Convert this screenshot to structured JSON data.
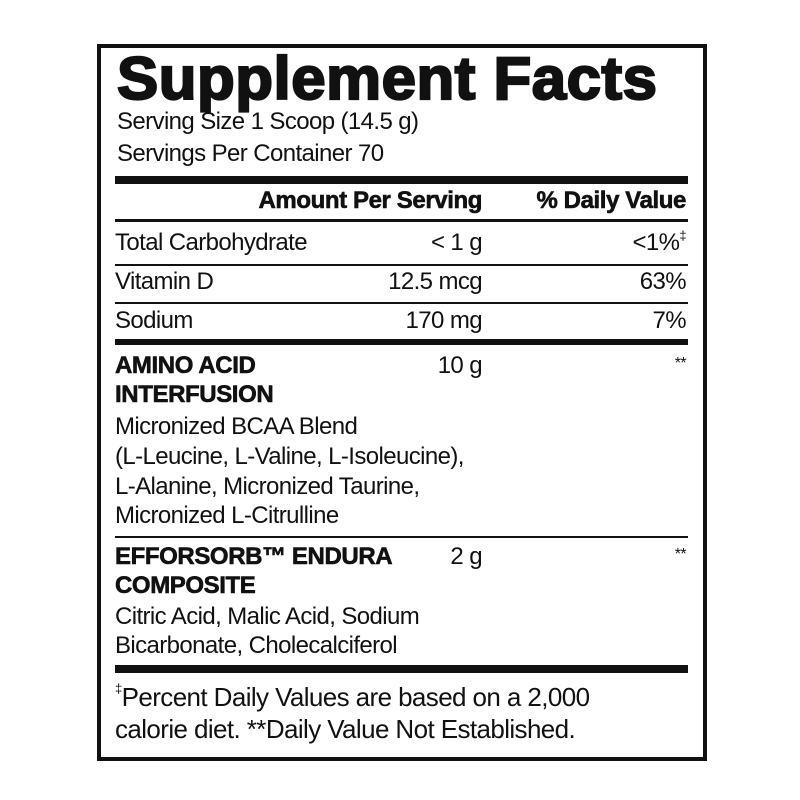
{
  "title": "Supplement Facts",
  "serving_size": "Serving Size 1 Scoop (14.5 g)",
  "servings_per_container": "Servings Per Container 70",
  "header": {
    "amount": "Amount Per Serving",
    "dv": "% Daily Value"
  },
  "nutrients": [
    {
      "name": "Total Carbohydrate",
      "amount": "< 1 g",
      "dv": "<1%",
      "dv_mark": "‡"
    },
    {
      "name": "Vitamin D",
      "amount": "12.5 mcg",
      "dv": "63%"
    },
    {
      "name": "Sodium",
      "amount": "170 mg",
      "dv": "7%"
    }
  ],
  "blends": [
    {
      "name_lines": [
        "AMINO ACID",
        "INTERFUSION"
      ],
      "amount": "10 g",
      "dv": "**",
      "ingredients": [
        "Micronized BCAA Blend",
        "(L-Leucine, L-Valine, L-Isoleucine),",
        "L-Alanine, Micronized Taurine,",
        "Micronized L-Citrulline"
      ]
    },
    {
      "name_lines": [
        "EFFORSORB™ ENDURA",
        "COMPOSITE"
      ],
      "amount": "2 g",
      "dv": "**",
      "ingredients": [
        "Citric Acid, Malic Acid, Sodium",
        "Bicarbonate, Cholecalciferol"
      ]
    }
  ],
  "footnote": {
    "mark": "‡",
    "line1": "Percent Daily Values are based on a 2,000",
    "line2": "calorie diet. **Daily Value Not Established."
  }
}
